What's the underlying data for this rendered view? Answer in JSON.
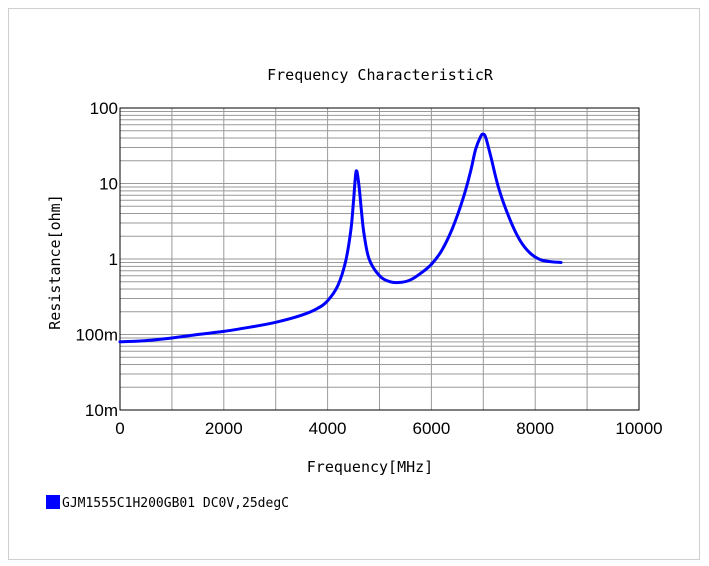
{
  "chart_data": {
    "type": "line",
    "title": "Frequency  CharacteristicR",
    "xlabel": "Frequency[MHz]",
    "ylabel": "Resistance[ohm]",
    "xlim": [
      0,
      10000
    ],
    "ylim": [
      0.01,
      100
    ],
    "yscale": "log",
    "grid": true,
    "x_tick_labels": [
      "0",
      "2000",
      "4000",
      "6000",
      "8000",
      "10000"
    ],
    "x_tick_values": [
      0,
      2000,
      4000,
      6000,
      8000,
      10000
    ],
    "y_tick_labels": [
      "10m",
      "100m",
      "1",
      "10",
      "100"
    ],
    "y_tick_values": [
      0.01,
      0.1,
      1,
      10,
      100
    ],
    "legend_position": "bottom-left",
    "series": [
      {
        "name": "GJM1555C1H200GB01 DC0V,25degC",
        "color": "#0000ff",
        "x": [
          0,
          500,
          1000,
          1500,
          2000,
          2500,
          3000,
          3500,
          3800,
          4000,
          4200,
          4350,
          4450,
          4500,
          4550,
          4600,
          4650,
          4700,
          4800,
          5000,
          5200,
          5400,
          5600,
          5800,
          6000,
          6200,
          6400,
          6600,
          6750,
          6850,
          6950,
          7000,
          7050,
          7150,
          7300,
          7500,
          7700,
          7900,
          8100,
          8300,
          8500
        ],
        "y": [
          0.08,
          0.083,
          0.09,
          0.1,
          0.11,
          0.125,
          0.145,
          0.18,
          0.22,
          0.28,
          0.45,
          0.95,
          2.5,
          6.0,
          14.5,
          10.0,
          4.5,
          2.2,
          1.0,
          0.6,
          0.5,
          0.49,
          0.53,
          0.65,
          0.85,
          1.3,
          2.5,
          6.0,
          14.0,
          28.0,
          42.0,
          45.0,
          40.0,
          22.0,
          8.5,
          3.5,
          1.8,
          1.2,
          0.98,
          0.92,
          0.9
        ]
      }
    ]
  }
}
